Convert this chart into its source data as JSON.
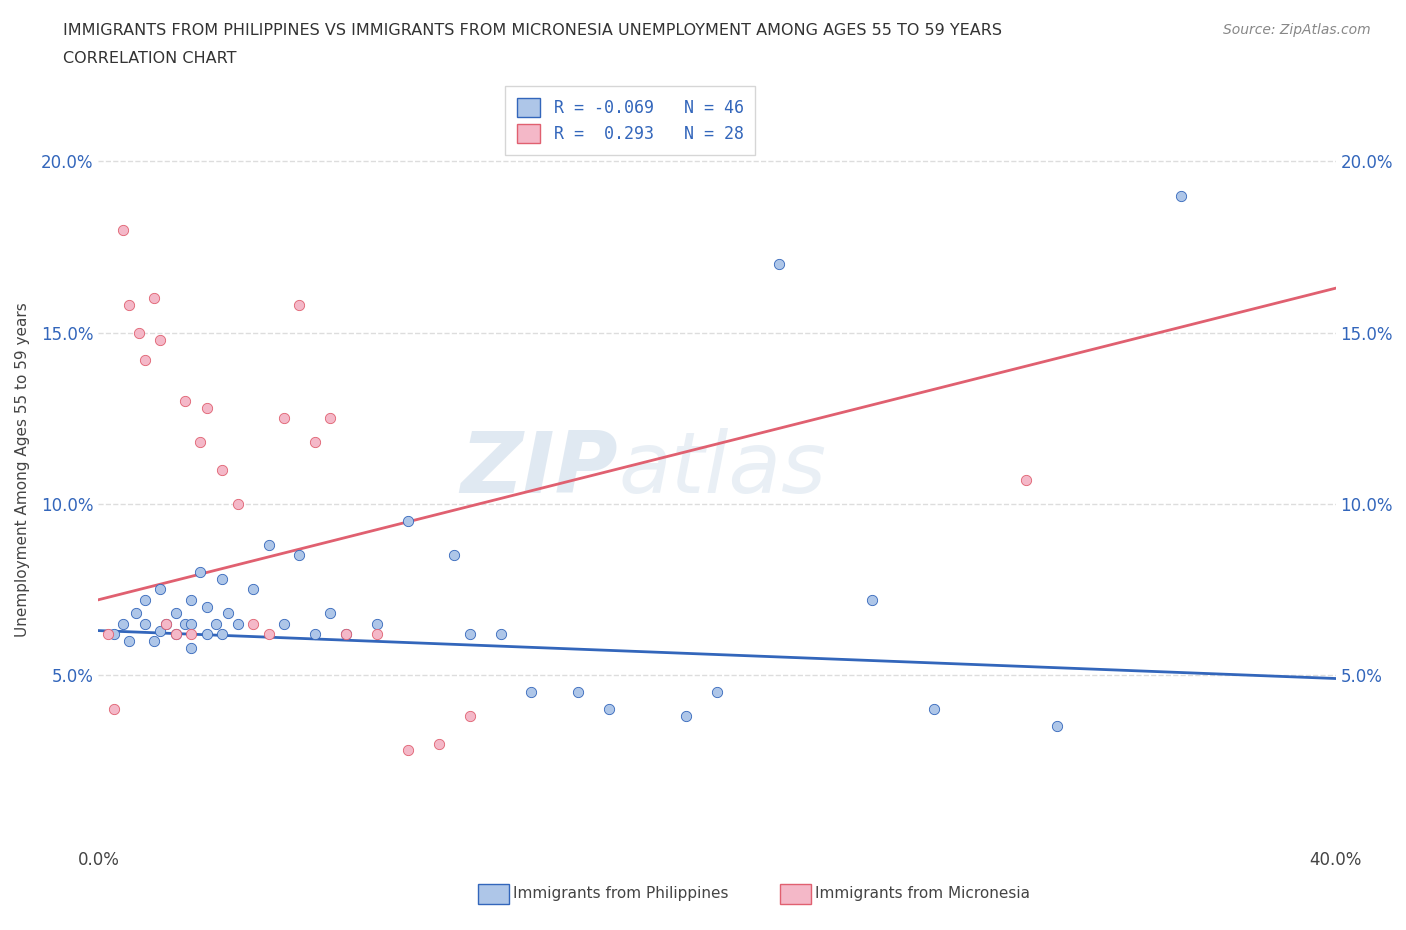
{
  "title_line1": "IMMIGRANTS FROM PHILIPPINES VS IMMIGRANTS FROM MICRONESIA UNEMPLOYMENT AMONG AGES 55 TO 59 YEARS",
  "title_line2": "CORRELATION CHART",
  "source": "Source: ZipAtlas.com",
  "ylabel_label": "Unemployment Among Ages 55 to 59 years",
  "xlim": [
    0.0,
    0.4
  ],
  "ylim": [
    0.0,
    0.22
  ],
  "xtick_positions": [
    0.0,
    0.05,
    0.1,
    0.15,
    0.2,
    0.25,
    0.3,
    0.35,
    0.4
  ],
  "xtick_labels": [
    "0.0%",
    "",
    "",
    "",
    "",
    "",
    "",
    "",
    "40.0%"
  ],
  "ytick_positions": [
    0.05,
    0.1,
    0.15,
    0.2
  ],
  "ytick_labels": [
    "5.0%",
    "10.0%",
    "15.0%",
    "20.0%"
  ],
  "philippines_color": "#aec6e8",
  "micronesia_color": "#f4b8c8",
  "philippines_line_color": "#3366bb",
  "micronesia_line_color": "#e06070",
  "legend_R1": "R = -0.069",
  "legend_N1": "N = 46",
  "legend_R2": "R =  0.293",
  "legend_N2": "N = 28",
  "phil_trend_x": [
    0.0,
    0.4
  ],
  "phil_trend_y": [
    0.063,
    0.049
  ],
  "micro_trend_x": [
    0.0,
    0.4
  ],
  "micro_trend_y": [
    0.072,
    0.163
  ],
  "philippines_scatter_x": [
    0.005,
    0.008,
    0.01,
    0.012,
    0.015,
    0.015,
    0.018,
    0.02,
    0.02,
    0.022,
    0.025,
    0.025,
    0.028,
    0.03,
    0.03,
    0.03,
    0.033,
    0.035,
    0.035,
    0.038,
    0.04,
    0.04,
    0.042,
    0.045,
    0.05,
    0.055,
    0.06,
    0.065,
    0.07,
    0.075,
    0.08,
    0.09,
    0.1,
    0.115,
    0.12,
    0.13,
    0.14,
    0.155,
    0.165,
    0.19,
    0.2,
    0.22,
    0.25,
    0.27,
    0.31,
    0.35
  ],
  "philippines_scatter_y": [
    0.062,
    0.065,
    0.06,
    0.068,
    0.065,
    0.072,
    0.06,
    0.063,
    0.075,
    0.065,
    0.062,
    0.068,
    0.065,
    0.058,
    0.065,
    0.072,
    0.08,
    0.062,
    0.07,
    0.065,
    0.062,
    0.078,
    0.068,
    0.065,
    0.075,
    0.088,
    0.065,
    0.085,
    0.062,
    0.068,
    0.062,
    0.065,
    0.095,
    0.085,
    0.062,
    0.062,
    0.045,
    0.045,
    0.04,
    0.038,
    0.045,
    0.17,
    0.072,
    0.04,
    0.035,
    0.19
  ],
  "micronesia_scatter_x": [
    0.003,
    0.005,
    0.008,
    0.01,
    0.013,
    0.015,
    0.018,
    0.02,
    0.022,
    0.025,
    0.028,
    0.03,
    0.033,
    0.035,
    0.04,
    0.045,
    0.05,
    0.055,
    0.06,
    0.065,
    0.07,
    0.075,
    0.08,
    0.09,
    0.1,
    0.11,
    0.12,
    0.3
  ],
  "micronesia_scatter_y": [
    0.062,
    0.04,
    0.18,
    0.158,
    0.15,
    0.142,
    0.16,
    0.148,
    0.065,
    0.062,
    0.13,
    0.062,
    0.118,
    0.128,
    0.11,
    0.1,
    0.065,
    0.062,
    0.125,
    0.158,
    0.118,
    0.125,
    0.062,
    0.062,
    0.028,
    0.03,
    0.038,
    0.107
  ],
  "watermark_text": "ZIPatlas",
  "background_color": "#ffffff",
  "grid_color": "#dddddd"
}
